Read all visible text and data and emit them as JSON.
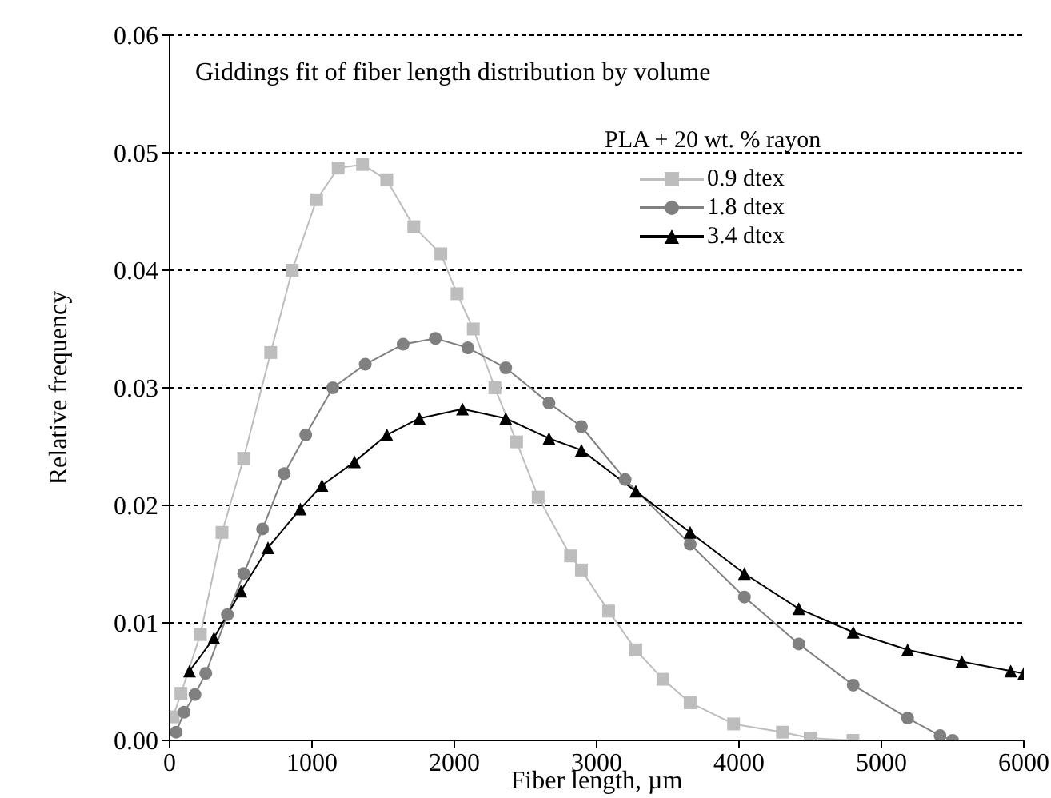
{
  "chart_data": {
    "type": "line",
    "title": "Giddings fit of fiber length distribution by volume",
    "legend_title": "PLA + 20 wt. % rayon",
    "xlabel": "Fiber length, µm",
    "ylabel": "Relative frequency",
    "xlim": [
      0,
      6000
    ],
    "xticks": [
      0,
      1000,
      2000,
      3000,
      4000,
      5000,
      6000
    ],
    "ylim": [
      0,
      0.06
    ],
    "yticks": [
      {
        "value": 0,
        "label": "0.00"
      },
      {
        "value": 0.01,
        "label": "0.01"
      },
      {
        "value": 0.02,
        "label": "0.02"
      },
      {
        "value": 0.03,
        "label": "0.03"
      },
      {
        "value": 0.04,
        "label": "0.04"
      },
      {
        "value": 0.05,
        "label": "0.05"
      },
      {
        "value": 0.06,
        "label": "0.06"
      }
    ],
    "grid": "y",
    "legend": "top right",
    "series": [
      {
        "name": "0.9 dtex",
        "color": "#bdbdbd",
        "marker": "square",
        "x": [
          25,
          80,
          216,
          368,
          520,
          710,
          861,
          1032,
          1184,
          1355,
          1525,
          1715,
          1905,
          2019,
          2133,
          2285,
          2437,
          2589,
          2817,
          2893,
          3084,
          3275,
          3466,
          3657,
          3962,
          4305,
          4500,
          4800
        ],
        "values": [
          0.002,
          0.004,
          0.009,
          0.0177,
          0.024,
          0.033,
          0.04,
          0.046,
          0.0487,
          0.049,
          0.0477,
          0.0437,
          0.0414,
          0.038,
          0.035,
          0.03,
          0.0254,
          0.0207,
          0.0157,
          0.0145,
          0.011,
          0.0077,
          0.0052,
          0.0032,
          0.0014,
          0.0007,
          0.0002,
          0
        ]
      },
      {
        "name": "1.8 dtex",
        "color": "#808080",
        "marker": "circle",
        "x": [
          46,
          102,
          178,
          254,
          406,
          520,
          653,
          805,
          956,
          1146,
          1374,
          1640,
          1867,
          2095,
          2361,
          2665,
          2893,
          3200,
          3657,
          4038,
          4420,
          4802,
          5184,
          5412,
          5500
        ],
        "values": [
          0.0007,
          0.0024,
          0.0039,
          0.0057,
          0.0107,
          0.0142,
          0.018,
          0.0227,
          0.026,
          0.03,
          0.032,
          0.0337,
          0.0342,
          0.0334,
          0.0317,
          0.0287,
          0.0267,
          0.0222,
          0.0167,
          0.0122,
          0.0082,
          0.0047,
          0.0019,
          0.0004,
          0
        ]
      },
      {
        "name": "3.4 dtex",
        "color": "#000000",
        "marker": "triangle",
        "x": [
          140,
          311,
          501,
          691,
          918,
          1070,
          1298,
          1526,
          1754,
          2057,
          2361,
          2665,
          2893,
          3275,
          3657,
          4038,
          4420,
          4802,
          5184,
          5565,
          5908,
          6000
        ],
        "values": [
          0.0059,
          0.0087,
          0.0127,
          0.0164,
          0.0197,
          0.0217,
          0.0237,
          0.026,
          0.0274,
          0.0282,
          0.0274,
          0.0257,
          0.0247,
          0.0212,
          0.0177,
          0.0142,
          0.0112,
          0.0092,
          0.0077,
          0.0067,
          0.0059,
          0.0057
        ]
      }
    ]
  }
}
